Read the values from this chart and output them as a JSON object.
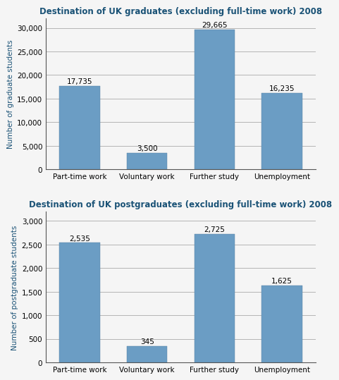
{
  "grad_title": "Destination of UK graduates (excluding full-time work) 2008",
  "postgrad_title": "Destination of UK postgraduates (excluding full-time work) 2008",
  "categories": [
    "Part-time work",
    "Voluntary work",
    "Further study",
    "Unemployment"
  ],
  "grad_values": [
    17735,
    3500,
    29665,
    16235
  ],
  "grad_labels": [
    "17,735",
    "3,500",
    "29,665",
    "16,235"
  ],
  "postgrad_values": [
    2535,
    345,
    2725,
    1625
  ],
  "postgrad_labels": [
    "2,535",
    "345",
    "2,725",
    "1,625"
  ],
  "bar_color": "#6B9DC4",
  "grad_ylabel": "Number of graduate students",
  "postgrad_ylabel": "Number of postgraduate students",
  "grad_ylim": [
    0,
    32000
  ],
  "postgrad_ylim": [
    0,
    3200
  ],
  "grad_yticks": [
    0,
    5000,
    10000,
    15000,
    20000,
    25000,
    30000
  ],
  "postgrad_yticks": [
    0,
    500,
    1000,
    1500,
    2000,
    2500,
    3000
  ],
  "title_color": "#1A5276",
  "ylabel_color": "#1A5276",
  "title_fontsize": 8.5,
  "tick_fontsize": 7.5,
  "ylabel_fontsize": 7.5,
  "bar_label_fontsize": 7.5,
  "bar_width": 0.6,
  "bg_color": "#F5F5F5"
}
